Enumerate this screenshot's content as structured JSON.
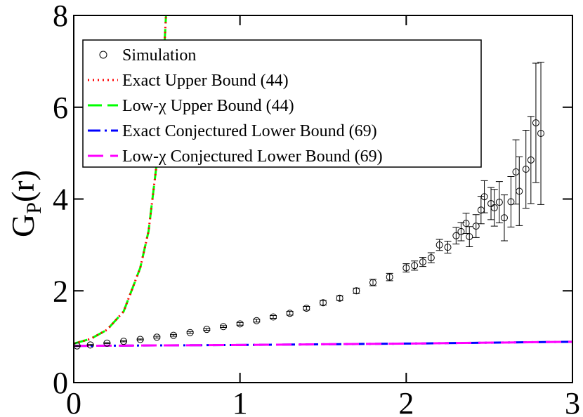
{
  "chart_data": {
    "type": "scatter",
    "y_label": [
      "G",
      "P",
      "(r)"
    ],
    "xlim": [
      0,
      3
    ],
    "ylim": [
      0,
      8
    ],
    "xticks": [
      0,
      1,
      2,
      3
    ],
    "yticks": [
      0,
      2,
      4,
      6,
      8
    ],
    "legend": "upper left",
    "series": [
      {
        "name": "Simulation",
        "kind": "errorbar",
        "color": "#000000",
        "x": [
          0.02,
          0.1,
          0.2,
          0.3,
          0.4,
          0.5,
          0.6,
          0.7,
          0.8,
          0.9,
          1.0,
          1.1,
          1.2,
          1.3,
          1.4,
          1.5,
          1.6,
          1.7,
          1.8,
          1.9,
          2.0,
          2.05,
          2.1,
          2.15,
          2.2,
          2.25,
          2.3,
          2.33,
          2.36,
          2.38,
          2.42,
          2.45,
          2.47,
          2.51,
          2.53,
          2.56,
          2.59,
          2.63,
          2.66,
          2.68,
          2.72,
          2.75,
          2.78,
          2.81
        ],
        "values": [
          0.8,
          0.82,
          0.86,
          0.9,
          0.94,
          0.99,
          1.03,
          1.09,
          1.16,
          1.22,
          1.28,
          1.35,
          1.43,
          1.51,
          1.62,
          1.74,
          1.84,
          2.0,
          2.18,
          2.3,
          2.5,
          2.55,
          2.63,
          2.72,
          3.0,
          2.95,
          3.2,
          3.29,
          3.47,
          3.18,
          3.41,
          3.76,
          4.05,
          3.9,
          3.81,
          3.93,
          3.59,
          3.94,
          4.59,
          4.17,
          4.65,
          4.85,
          5.66,
          5.43
        ],
        "errors": [
          0.01,
          0.01,
          0.01,
          0.01,
          0.01,
          0.02,
          0.02,
          0.02,
          0.02,
          0.02,
          0.03,
          0.03,
          0.03,
          0.04,
          0.04,
          0.05,
          0.05,
          0.06,
          0.07,
          0.08,
          0.09,
          0.1,
          0.1,
          0.11,
          0.12,
          0.13,
          0.18,
          0.2,
          0.22,
          0.22,
          0.25,
          0.3,
          0.35,
          0.35,
          0.4,
          0.45,
          0.5,
          0.55,
          0.7,
          0.75,
          0.85,
          0.95,
          1.3,
          1.55
        ]
      },
      {
        "name": "Exact Upper Bound (44)",
        "kind": "line",
        "color": "#ff0000",
        "dash": "2,5",
        "x": [
          0,
          0.1,
          0.2,
          0.3,
          0.4,
          0.45,
          0.5,
          0.53,
          0.555
        ],
        "values": [
          0.85,
          0.95,
          1.15,
          1.55,
          2.5,
          3.3,
          4.8,
          6.3,
          8
        ]
      },
      {
        "name": "Low-χ Upper Bound (44)",
        "kind": "line",
        "color": "#00ff00",
        "dash": "20,8",
        "x": [
          0,
          0.1,
          0.2,
          0.3,
          0.4,
          0.45,
          0.5,
          0.53,
          0.555
        ],
        "values": [
          0.85,
          0.95,
          1.15,
          1.55,
          2.5,
          3.3,
          4.8,
          6.3,
          8
        ]
      },
      {
        "name": "Exact Conjectured Lower Bound (69)",
        "kind": "line",
        "color": "#0000ff",
        "dash": "18,6,3,6",
        "x": [
          0,
          1,
          2,
          3
        ],
        "values": [
          0.8,
          0.82,
          0.85,
          0.89
        ]
      },
      {
        "name": "Low-χ Conjectured Lower Bound (69)",
        "kind": "line",
        "color": "#ff00ff",
        "dash": "22,10",
        "x": [
          0,
          1,
          2,
          3
        ],
        "values": [
          0.8,
          0.82,
          0.85,
          0.89
        ]
      }
    ]
  }
}
